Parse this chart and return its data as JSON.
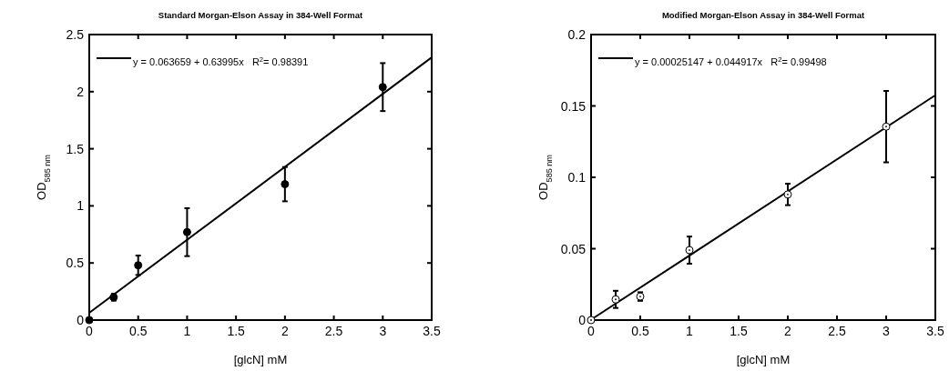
{
  "chart_data": [
    {
      "type": "scatter",
      "title": "Standard Morgan-Elson Assay in 384-Well Format",
      "xlabel": "[glcN] mM",
      "ylabel": "OD$_{585 nm}$",
      "xlim": [
        0,
        3.5
      ],
      "xticks": [
        0,
        0.5,
        1,
        1.5,
        2,
        2.5,
        3,
        3.5
      ],
      "ylim": [
        0,
        2.5
      ],
      "yticks": [
        0,
        0.5,
        1,
        1.5,
        2,
        2.5
      ],
      "legend": "top left",
      "grid": false,
      "series": [
        {
          "type": "scatter",
          "marker": "circle",
          "color": "#000000",
          "x": [
            0,
            0.25,
            0.5,
            1,
            2,
            3
          ],
          "values": [
            0,
            0.2,
            0.48,
            0.77,
            1.19,
            2.04
          ],
          "errors": [
            null,
            0.03,
            0.085,
            0.21,
            0.15,
            0.21
          ]
        },
        {
          "type": "line",
          "name": "y = 0.063659 + 0.63995x   R$^{2}$= 0.98391",
          "color": "#000000",
          "x": [
            0,
            3.5
          ],
          "values": [
            0.064,
            2.3
          ]
        }
      ]
    },
    {
      "type": "scatter",
      "title": "Modified Morgan-Elson Assay in 384-Well Format",
      "xlabel": "[glcN] mM",
      "ylabel": "OD$_{585 nm}$",
      "xlim": [
        0,
        3.5
      ],
      "xticks": [
        0,
        0.5,
        1,
        1.5,
        2,
        2.5,
        3,
        3.5
      ],
      "ylim": [
        0,
        0.2
      ],
      "yticks": [
        0,
        0.05,
        0.1,
        0.15,
        0.2
      ],
      "legend": "top left",
      "grid": false,
      "series": [
        {
          "type": "scatter",
          "marker": "circle",
          "color": "#ffffff",
          "x": [
            0,
            0.25,
            0.5,
            1,
            2,
            3
          ],
          "values": [
            0,
            0.0145,
            0.0165,
            0.049,
            0.088,
            0.1355
          ],
          "errors": [
            null,
            0.006,
            0.003,
            0.0095,
            0.0075,
            0.025
          ]
        },
        {
          "type": "line",
          "name": "y = 0.00025147 + 0.044917x   R$^{2}$= 0.99498",
          "color": "#000000",
          "x": [
            0,
            3.5
          ],
          "values": [
            0.0003,
            0.1575
          ]
        }
      ]
    }
  ]
}
